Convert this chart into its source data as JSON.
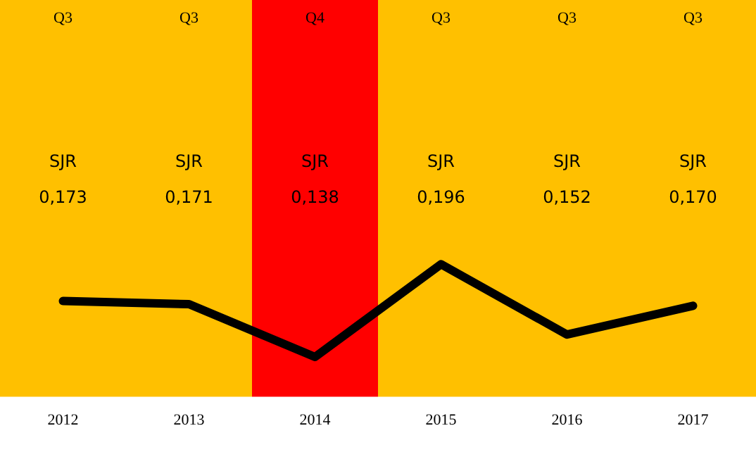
{
  "chart_data": {
    "type": "line",
    "categories": [
      "2012",
      "2013",
      "2014",
      "2015",
      "2016",
      "2017"
    ],
    "series": [
      {
        "name": "SJR",
        "color": "#000000",
        "values": [
          0.173,
          0.171,
          0.138,
          0.196,
          0.152,
          0.17
        ],
        "value_labels": [
          "0,173",
          "0,171",
          "0,138",
          "0,196",
          "0,152",
          "0,170"
        ]
      }
    ],
    "bands": [
      {
        "axis": "x",
        "from": "2012",
        "to": "2012",
        "label": "Q3",
        "color": "#ffc000"
      },
      {
        "axis": "x",
        "from": "2013",
        "to": "2013",
        "label": "Q3",
        "color": "#ffc000"
      },
      {
        "axis": "x",
        "from": "2014",
        "to": "2014",
        "label": "Q4",
        "color": "#ff0000"
      },
      {
        "axis": "x",
        "from": "2015",
        "to": "2015",
        "label": "Q3",
        "color": "#ffc000"
      },
      {
        "axis": "x",
        "from": "2016",
        "to": "2016",
        "label": "Q3",
        "color": "#ffc000"
      },
      {
        "axis": "x",
        "from": "2017",
        "to": "2017",
        "label": "Q3",
        "color": "#ffc000"
      }
    ],
    "grid": false,
    "legend": false,
    "marker": "none",
    "line_style": "solid"
  }
}
